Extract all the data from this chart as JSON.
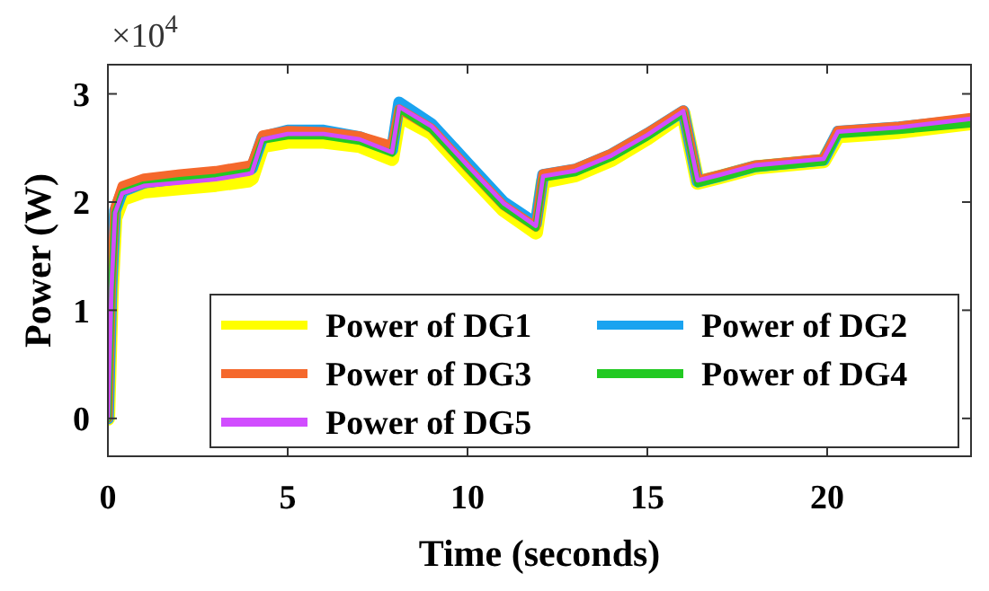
{
  "chart_data": {
    "type": "line",
    "xlabel": "Time (seconds)",
    "ylabel": "Power (W)",
    "annotations": [
      "×10$^{4}$"
    ],
    "x": [
      0,
      0.1,
      0.2,
      0.4,
      1,
      2,
      3,
      3.9,
      4.0,
      4.3,
      5,
      6,
      7,
      7.9,
      8.1,
      9,
      10,
      11,
      11.9,
      12.1,
      13,
      14,
      15,
      16,
      16.4,
      17,
      18,
      19.9,
      20.3,
      22,
      24
    ],
    "series": [
      {
        "name": "Power of DG1",
        "color": "#ffff00",
        "values": [
          0,
          1.15,
          1.85,
          2.03,
          2.1,
          2.13,
          2.16,
          2.2,
          2.22,
          2.52,
          2.56,
          2.56,
          2.52,
          2.4,
          2.8,
          2.64,
          2.28,
          1.93,
          1.72,
          2.19,
          2.25,
          2.39,
          2.59,
          2.82,
          2.18,
          2.23,
          2.32,
          2.38,
          2.61,
          2.65,
          2.73
        ]
      },
      {
        "name": "Power of DG2",
        "color": "#1aa3f0",
        "values": [
          0,
          1.22,
          1.92,
          2.1,
          2.18,
          2.22,
          2.25,
          2.3,
          2.31,
          2.6,
          2.66,
          2.66,
          2.6,
          2.48,
          2.92,
          2.72,
          2.36,
          2.0,
          1.8,
          2.25,
          2.3,
          2.44,
          2.63,
          2.84,
          2.19,
          2.24,
          2.33,
          2.39,
          2.65,
          2.69,
          2.76
        ]
      },
      {
        "name": "Power of DG3",
        "color": "#f5682c",
        "values": [
          0,
          1.25,
          1.95,
          2.15,
          2.22,
          2.26,
          2.29,
          2.34,
          2.35,
          2.62,
          2.66,
          2.65,
          2.61,
          2.52,
          2.86,
          2.68,
          2.32,
          1.97,
          1.77,
          2.26,
          2.31,
          2.45,
          2.64,
          2.85,
          2.2,
          2.25,
          2.34,
          2.4,
          2.66,
          2.7,
          2.78
        ]
      },
      {
        "name": "Power of DG4",
        "color": "#22c922",
        "values": [
          0,
          1.2,
          1.9,
          2.09,
          2.16,
          2.2,
          2.23,
          2.28,
          2.29,
          2.57,
          2.61,
          2.61,
          2.56,
          2.45,
          2.86,
          2.67,
          2.31,
          1.96,
          1.76,
          2.22,
          2.27,
          2.41,
          2.6,
          2.82,
          2.17,
          2.22,
          2.31,
          2.37,
          2.62,
          2.66,
          2.72
        ]
      },
      {
        "name": "Power of DG5",
        "color": "#d14dff",
        "values": [
          0,
          1.2,
          1.9,
          2.08,
          2.15,
          2.18,
          2.21,
          2.26,
          2.27,
          2.58,
          2.63,
          2.63,
          2.58,
          2.46,
          2.88,
          2.7,
          2.34,
          1.99,
          1.78,
          2.24,
          2.29,
          2.43,
          2.62,
          2.84,
          2.2,
          2.25,
          2.34,
          2.4,
          2.65,
          2.69,
          2.77
        ]
      }
    ],
    "xlim": [
      0,
      24
    ],
    "xticks": [
      0,
      5,
      10,
      15,
      20
    ],
    "ylim": [
      -0.35,
      3.27
    ],
    "yticks": [
      0,
      1,
      2,
      3
    ],
    "grid": false,
    "legend": "bottom right",
    "marker": "none",
    "line_style": "solid"
  }
}
